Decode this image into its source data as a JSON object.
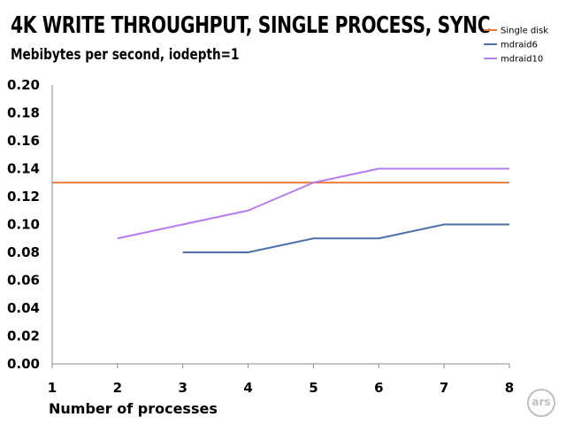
{
  "chart_data": {
    "type": "line",
    "title": "4K WRITE THROUGHPUT, SINGLE PROCESS, SYNC",
    "subtitle": "Mebibytes per second, iodepth=1",
    "xlabel": "Number of processes",
    "ylabel": "",
    "x": [
      1,
      2,
      3,
      4,
      5,
      6,
      7,
      8
    ],
    "xlim": [
      1,
      8
    ],
    "ylim": [
      0,
      0.2
    ],
    "yticks": [
      "0.00",
      "0.02",
      "0.04",
      "0.06",
      "0.08",
      "0.10",
      "0.12",
      "0.14",
      "0.16",
      "0.18",
      "0.20"
    ],
    "grid": false,
    "legend_position": "top-right",
    "series": [
      {
        "name": "Single disk",
        "color": "#e8783a",
        "x": [
          1,
          8
        ],
        "values": [
          0.13,
          0.13
        ]
      },
      {
        "name": "mdraid6",
        "color": "#4a72a8",
        "x": [
          3,
          4,
          5,
          6,
          7,
          8
        ],
        "values": [
          0.08,
          0.08,
          0.09,
          0.09,
          0.1,
          0.1
        ]
      },
      {
        "name": "mdraid10",
        "color": "#b57cf0",
        "x": [
          2,
          3,
          4,
          5,
          6,
          7,
          8
        ],
        "values": [
          0.09,
          0.1,
          0.11,
          0.13,
          0.14,
          0.14,
          0.14
        ]
      }
    ]
  },
  "logo": {
    "text": "ars"
  }
}
